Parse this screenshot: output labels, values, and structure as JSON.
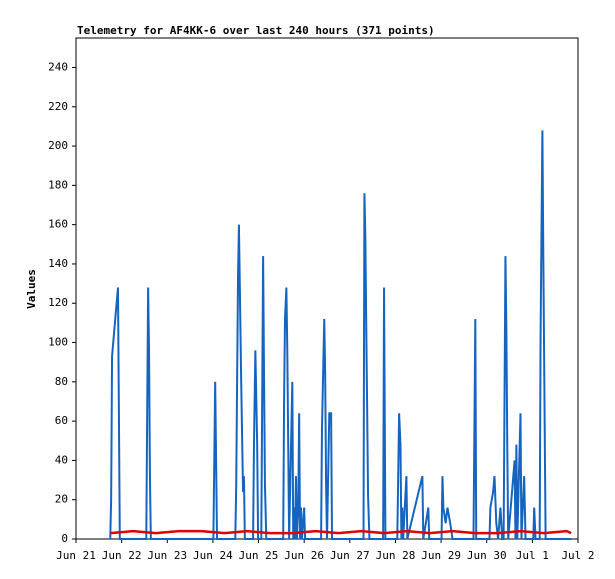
{
  "chart_data": {
    "type": "line",
    "title": "Telemetry for AF4KK-6 over last 240 hours (371 points)",
    "y_label": "Values",
    "xlim": [
      0,
      11
    ],
    "xticks": [
      {
        "value": 0,
        "label": "Jun 21"
      },
      {
        "value": 1,
        "label": "Jun 22"
      },
      {
        "value": 2,
        "label": "Jun 23"
      },
      {
        "value": 3,
        "label": "Jun 24"
      },
      {
        "value": 4,
        "label": "Jun 25"
      },
      {
        "value": 5,
        "label": "Jun 26"
      },
      {
        "value": 6,
        "label": "Jun 27"
      },
      {
        "value": 7,
        "label": "Jun 28"
      },
      {
        "value": 8,
        "label": "Jun 29"
      },
      {
        "value": 9,
        "label": "Jun 30"
      },
      {
        "value": 10,
        "label": "Jul 1"
      },
      {
        "value": 11,
        "label": "Jul 2"
      }
    ],
    "ylim": [
      0,
      255
    ],
    "yticks": [
      0,
      20,
      40,
      60,
      80,
      100,
      120,
      140,
      160,
      180,
      200,
      220,
      240
    ],
    "grid": false,
    "series": [
      {
        "color": "#1565c0",
        "x": [
          0.75,
          0.77,
          0.78,
          0.79,
          0.86,
          0.92,
          0.96,
          1.54,
          1.56,
          1.58,
          1.6,
          1.62,
          1.64,
          3.01,
          3.03,
          3.05,
          3.07,
          3.09,
          3.49,
          3.51,
          3.55,
          3.57,
          3.62,
          3.66,
          3.68,
          3.7,
          3.88,
          3.9,
          3.93,
          3.97,
          3.99,
          4.06,
          4.08,
          4.1,
          4.12,
          4.14,
          4.17,
          4.54,
          4.56,
          4.58,
          4.61,
          4.63,
          4.65,
          4.67,
          4.74,
          4.76,
          4.78,
          4.8,
          4.82,
          4.84,
          4.87,
          4.89,
          4.91,
          4.93,
          4.95,
          5.0,
          5.02,
          5.37,
          5.39,
          5.44,
          5.46,
          5.48,
          5.5,
          5.55,
          5.59,
          5.61,
          6.3,
          6.32,
          6.34,
          6.36,
          6.38,
          6.4,
          6.43,
          6.73,
          6.75,
          6.78,
          7.04,
          7.06,
          7.08,
          7.11,
          7.13,
          7.15,
          7.17,
          7.24,
          7.26,
          7.59,
          7.61,
          7.72,
          7.74,
          8.01,
          8.03,
          8.05,
          8.1,
          8.14,
          8.2,
          8.25,
          8.71,
          8.73,
          8.75,
          8.77,
          9.06,
          9.08,
          9.14,
          9.17,
          9.21,
          9.25,
          9.3,
          9.34,
          9.37,
          9.39,
          9.41,
          9.43,
          9.45,
          9.47,
          9.61,
          9.63,
          9.65,
          9.67,
          9.74,
          9.76,
          9.82,
          9.85,
          10.02,
          10.04,
          10.07,
          10.16,
          10.18,
          10.22,
          10.24,
          10.29,
          10.85
        ],
        "values": [
          0,
          20,
          56,
          93,
          112,
          128,
          0,
          0,
          64,
          128,
          96,
          32,
          0,
          0,
          40,
          80,
          40,
          0,
          0,
          26,
          133,
          160,
          80,
          24,
          32,
          0,
          0,
          48,
          96,
          48,
          0,
          0,
          72,
          144,
          84,
          28,
          0,
          0,
          72,
          112,
          128,
          96,
          48,
          0,
          80,
          0,
          16,
          0,
          32,
          0,
          16,
          64,
          0,
          16,
          0,
          16,
          0,
          0,
          56,
          112,
          84,
          28,
          0,
          64,
          64,
          0,
          0,
          176,
          154,
          108,
          66,
          22,
          0,
          0,
          128,
          0,
          0,
          32,
          64,
          48,
          0,
          16,
          0,
          32,
          0,
          32,
          0,
          16,
          0,
          0,
          32,
          16,
          8,
          16,
          8,
          0,
          0,
          56,
          112,
          0,
          0,
          16,
          24,
          32,
          8,
          0,
          16,
          0,
          0,
          72,
          144,
          108,
          48,
          0,
          40,
          0,
          48,
          0,
          64,
          0,
          32,
          0,
          0,
          16,
          0,
          0,
          104,
          208,
          144,
          0,
          0
        ]
      },
      {
        "color": "#e00000",
        "x": [
          0.75,
          1.25,
          1.75,
          2.25,
          2.75,
          3.25,
          3.75,
          4.25,
          4.75,
          5.25,
          5.75,
          6.25,
          6.75,
          7.25,
          7.75,
          8.25,
          8.75,
          9.25,
          9.75,
          10.25,
          10.75,
          10.85
        ],
        "values": [
          3,
          4,
          3,
          4,
          4,
          3,
          4,
          3,
          3,
          4,
          3,
          4,
          3,
          4,
          3,
          4,
          3,
          3,
          4,
          3,
          4,
          3
        ]
      }
    ]
  }
}
